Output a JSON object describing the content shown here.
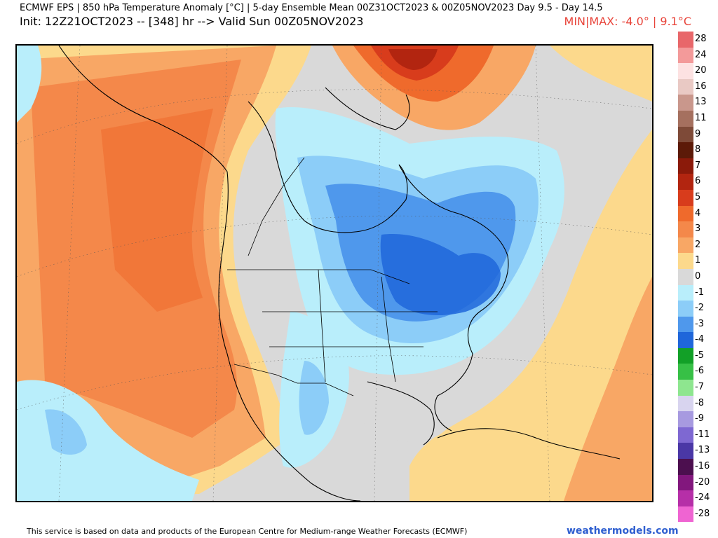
{
  "header": {
    "line1": "ECMWF EPS | 850 hPa Temperature Anomaly [°C] | 5-day Ensemble Mean 00Z31OCT2023 & 00Z05NOV2023   Day 9.5 - Day 14.5",
    "line2": "Init: 12Z21OCT2023 -- [348] hr --> Valid Sun 00Z05NOV2023",
    "minmax": "MIN|MAX: -4.0° | 9.1°C"
  },
  "colors": {
    "minmax_text": "#e8443a",
    "brand_text": "#2f5fd0",
    "land_outline": "#000000"
  },
  "colorbar": {
    "items": [
      {
        "label": "28",
        "color": "#e8676a"
      },
      {
        "label": "24",
        "color": "#f39a9a"
      },
      {
        "label": "20",
        "color": "#fde2e2"
      },
      {
        "label": "16",
        "color": "#e9c9c4"
      },
      {
        "label": "13",
        "color": "#c9978c"
      },
      {
        "label": "11",
        "color": "#a5705f"
      },
      {
        "label": "9",
        "color": "#7e4a38"
      },
      {
        "label": "8",
        "color": "#5c1a08"
      },
      {
        "label": "7",
        "color": "#8b1a0a"
      },
      {
        "label": "6",
        "color": "#b22510"
      },
      {
        "label": "5",
        "color": "#d83c1c"
      },
      {
        "label": "4",
        "color": "#ef6a2c"
      },
      {
        "label": "3",
        "color": "#f4884a"
      },
      {
        "label": "2",
        "color": "#f8a765"
      },
      {
        "label": "1",
        "color": "#fcd98c"
      },
      {
        "label": "0",
        "color": "#d9d9d9"
      },
      {
        "label": "-1",
        "color": "#b9eefb"
      },
      {
        "label": "-2",
        "color": "#8ccdf8"
      },
      {
        "label": "-3",
        "color": "#4f98ec"
      },
      {
        "label": "-4",
        "color": "#1f66da"
      },
      {
        "label": "-5",
        "color": "#12a027"
      },
      {
        "label": "-6",
        "color": "#37c046"
      },
      {
        "label": "-7",
        "color": "#8ee68f"
      },
      {
        "label": "-8",
        "color": "#d8d4ef"
      },
      {
        "label": "-9",
        "color": "#a79ae0"
      },
      {
        "label": "-11",
        "color": "#7e68d2"
      },
      {
        "label": "-13",
        "color": "#4a37a6"
      },
      {
        "label": "-16",
        "color": "#4c0f4f"
      },
      {
        "label": "-20",
        "color": "#82177d"
      },
      {
        "label": "-24",
        "color": "#b62fa8"
      },
      {
        "label": "-28",
        "color": "#ef64d2"
      }
    ]
  },
  "footer": {
    "note": "This service is based on data and products of the European Centre for Medium-range Weather Forecasts (ECMWF)",
    "brand": "weathermodels.com"
  }
}
